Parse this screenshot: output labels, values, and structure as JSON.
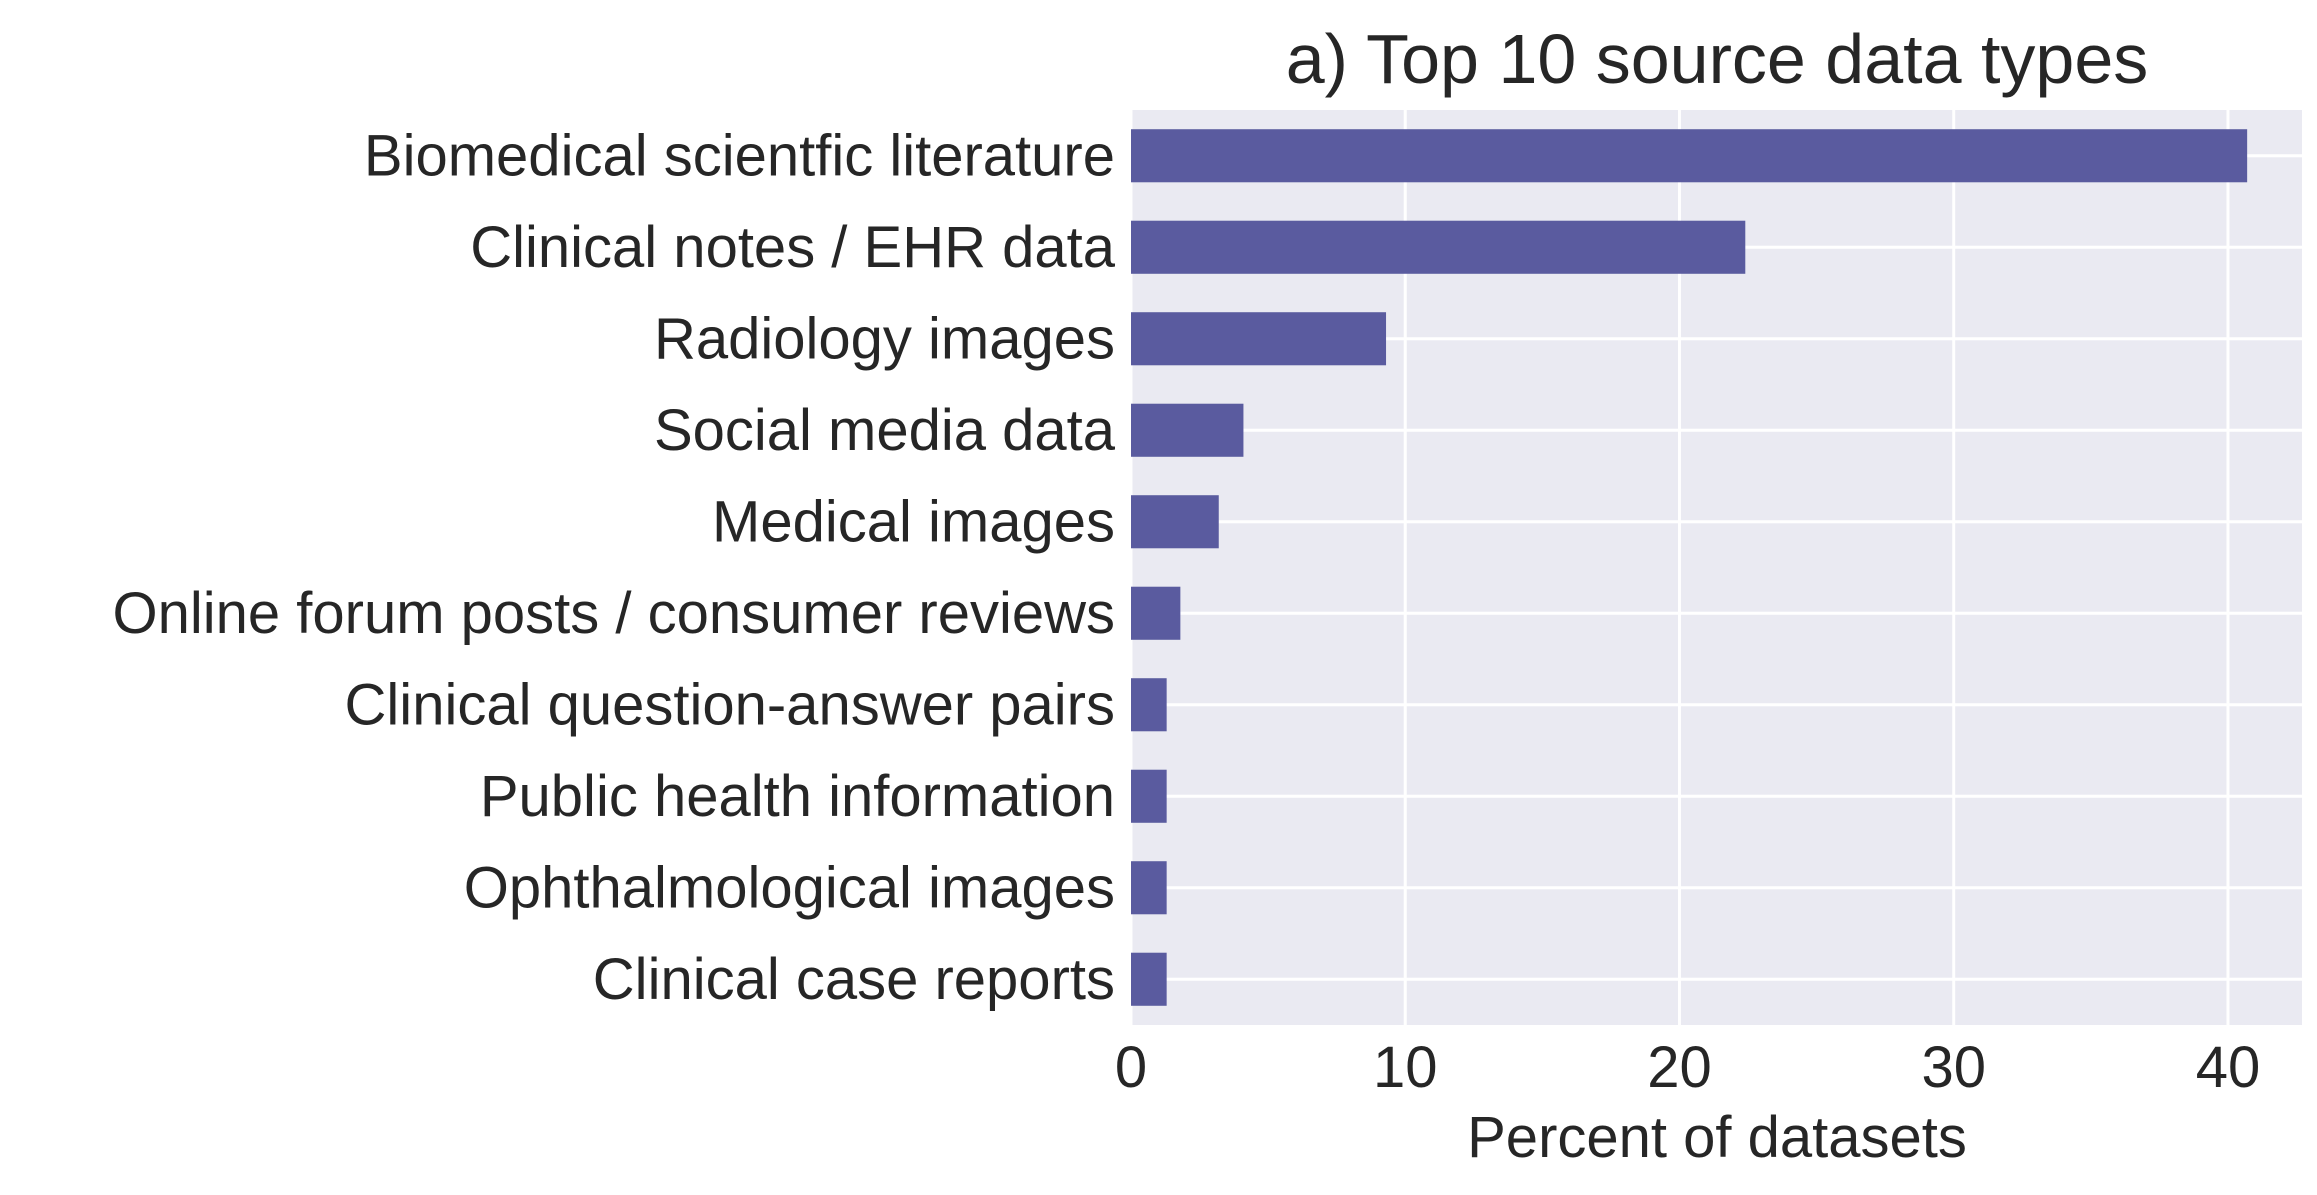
{
  "chart_data": {
    "type": "bar",
    "orientation": "horizontal",
    "title": "a) Top 10 source data types",
    "xlabel": "Percent of datasets",
    "ylabel": "",
    "categories": [
      "Biomedical scientfic literature",
      "Clinical notes / EHR data",
      "Radiology images",
      "Social media data",
      "Medical images",
      "Online forum posts / consumer reviews",
      "Clinical question-answer pairs",
      "Public health information",
      "Ophthalmological images",
      "Clinical case reports"
    ],
    "values": [
      40.7,
      22.4,
      9.3,
      4.1,
      3.2,
      1.8,
      1.3,
      1.3,
      1.3,
      1.3
    ],
    "xlim": [
      0,
      42.7
    ],
    "xticks": [
      0,
      10,
      20,
      30,
      40
    ],
    "grid": true,
    "colors": {
      "bar": "#5a5b9f",
      "plot_background": "#eaeaf2",
      "grid": "#ffffff",
      "text": "#262626"
    }
  }
}
